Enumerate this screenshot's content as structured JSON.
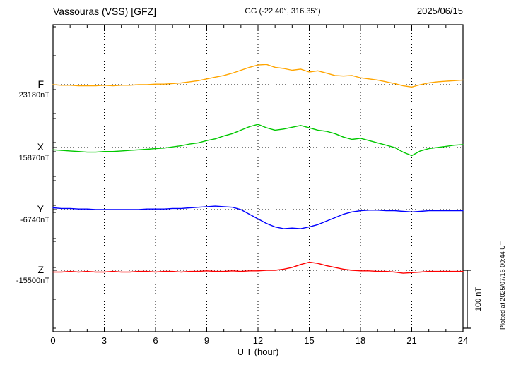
{
  "header": {
    "station": "Vassouras (VSS)  [GFZ]",
    "coords": "GG (-22.40°, 316.35°)",
    "date": "2025/06/15"
  },
  "xaxis": {
    "label": "U T (hour)",
    "ticks": [
      0,
      3,
      6,
      9,
      12,
      15,
      18,
      21,
      24
    ],
    "min": 0,
    "max": 24
  },
  "scalebar": {
    "label": "100 nT",
    "nT": 100
  },
  "footer_note": "Plotted at 2025/07/16 00:44 UT",
  "chart_data": {
    "type": "line",
    "title": "Vassouras (VSS)  [GFZ]",
    "subtitle": "GG (-22.40°, 316.35°)",
    "date": "2025/06/15",
    "x": {
      "start": 0,
      "end": 24,
      "step": 0.5,
      "unit": "hour",
      "label": "U T (hour)"
    },
    "grid": "dotted vertical every 3h, dotted baseline per series",
    "scale_bar_nT": 100,
    "series": [
      {
        "name": "F",
        "base_label": "23180nT",
        "base_value_nT": 23180,
        "color": "#FFA500",
        "values_nT_offset": [
          0,
          -1,
          -1,
          -2,
          -2,
          -2,
          -1,
          -2,
          -1,
          -1,
          0,
          0,
          1,
          1,
          2,
          3,
          5,
          7,
          10,
          13,
          16,
          20,
          25,
          30,
          34,
          35,
          30,
          28,
          25,
          27,
          22,
          24,
          20,
          16,
          15,
          16,
          12,
          10,
          8,
          5,
          2,
          -2,
          -4,
          0,
          3,
          5,
          6,
          7,
          8
        ]
      },
      {
        "name": "X",
        "base_label": "15870nT",
        "base_value_nT": 15870,
        "color": "#00C800",
        "values_nT_offset": [
          -4,
          -5,
          -6,
          -7,
          -8,
          -8,
          -7,
          -7,
          -6,
          -5,
          -4,
          -3,
          -2,
          -1,
          1,
          3,
          6,
          8,
          12,
          15,
          20,
          24,
          30,
          36,
          40,
          34,
          30,
          32,
          35,
          38,
          34,
          30,
          28,
          24,
          18,
          14,
          16,
          12,
          8,
          4,
          0,
          -8,
          -14,
          -6,
          -2,
          0,
          2,
          4,
          5
        ]
      },
      {
        "name": "Y",
        "base_label": "-6740nT",
        "base_value_nT": -6740,
        "color": "#0000FF",
        "values_nT_offset": [
          3,
          2,
          2,
          1,
          1,
          0,
          0,
          0,
          0,
          0,
          0,
          1,
          1,
          1,
          2,
          2,
          3,
          4,
          5,
          6,
          5,
          4,
          0,
          -8,
          -16,
          -24,
          -30,
          -33,
          -32,
          -33,
          -30,
          -26,
          -20,
          -14,
          -8,
          -4,
          -2,
          -1,
          -1,
          -2,
          -2,
          -3,
          -4,
          -3,
          -2,
          -2,
          -2,
          -2,
          -2
        ]
      },
      {
        "name": "Z",
        "base_label": "-15500nT",
        "base_value_nT": -15500,
        "color": "#FF0000",
        "values_nT_offset": [
          -3,
          -3,
          -2,
          -3,
          -2,
          -3,
          -3,
          -2,
          -3,
          -3,
          -2,
          -2,
          -3,
          -2,
          -2,
          -3,
          -2,
          -2,
          -1,
          -2,
          -2,
          -1,
          -2,
          -1,
          -1,
          0,
          0,
          2,
          5,
          10,
          14,
          12,
          8,
          5,
          2,
          0,
          -1,
          -1,
          -2,
          -2,
          -3,
          -5,
          -4,
          -3,
          -2,
          -2,
          -2,
          -2,
          -2
        ]
      }
    ]
  }
}
